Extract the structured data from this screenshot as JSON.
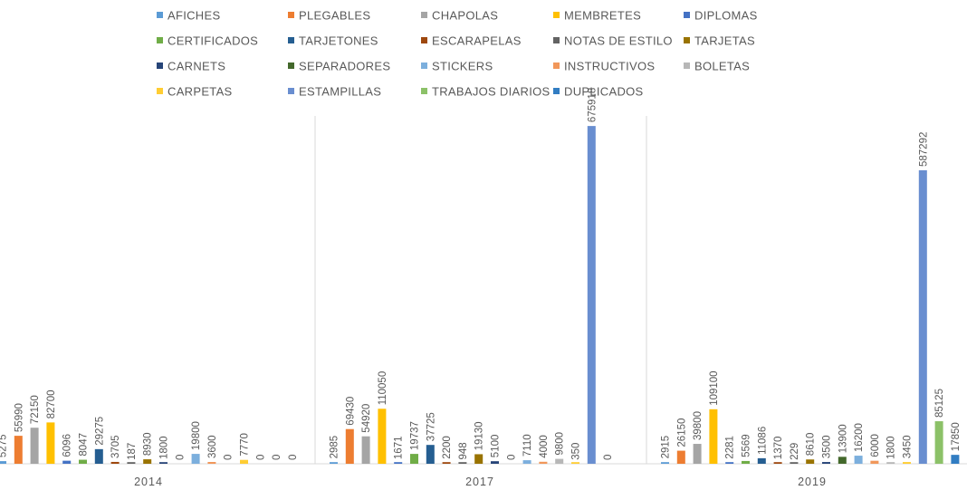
{
  "chart_data": {
    "type": "bar",
    "categories": [
      "2014",
      "2017",
      "2019"
    ],
    "ylim": [
      0,
      720000
    ],
    "grid": false,
    "legend_position": "top",
    "series": [
      {
        "name": "AFICHES",
        "color": "#5b9bd5",
        "values": [
          5275,
          2985,
          2915
        ]
      },
      {
        "name": "PLEGABLES",
        "color": "#ed7d31",
        "values": [
          55990,
          69430,
          26150
        ]
      },
      {
        "name": "CHAPOLAS",
        "color": "#a5a5a5",
        "values": [
          72150,
          54920,
          39800
        ]
      },
      {
        "name": "MEMBRETES",
        "color": "#ffc000",
        "values": [
          82700,
          110050,
          109100
        ]
      },
      {
        "name": "DIPLOMAS",
        "color": "#4472c4",
        "values": [
          6096,
          1671,
          2281
        ]
      },
      {
        "name": "CERTIFICADOS",
        "color": "#70ad47",
        "values": [
          8047,
          19737,
          5569
        ]
      },
      {
        "name": "TARJETONES",
        "color": "#255e91",
        "values": [
          29275,
          37725,
          11086
        ]
      },
      {
        "name": "ESCARAPELAS",
        "color": "#9e480e",
        "values": [
          3705,
          2200,
          1370
        ]
      },
      {
        "name": "NOTAS DE ESTILO",
        "color": "#636363",
        "values": [
          187,
          948,
          229
        ]
      },
      {
        "name": "TARJETAS",
        "color": "#997300",
        "values": [
          8930,
          19130,
          8610
        ]
      },
      {
        "name": "CARNETS",
        "color": "#264478",
        "values": [
          1800,
          5100,
          3500
        ]
      },
      {
        "name": "SEPARADORES",
        "color": "#43682b",
        "values": [
          0,
          0,
          13900
        ]
      },
      {
        "name": "STICKERS",
        "color": "#7cafdd",
        "values": [
          19800,
          7110,
          16200
        ]
      },
      {
        "name": "INSTRUCTIVOS",
        "color": "#f1975a",
        "values": [
          3600,
          4000,
          6000
        ]
      },
      {
        "name": "BOLETAS",
        "color": "#b7b7b7",
        "values": [
          0,
          9800,
          1800
        ]
      },
      {
        "name": "CARPETAS",
        "color": "#ffcd33",
        "values": [
          7770,
          350,
          3450
        ]
      },
      {
        "name": "ESTAMPILLAS",
        "color": "#698ed0",
        "values": [
          0,
          675918,
          587292
        ]
      },
      {
        "name": "TRABAJOS DIARIOS",
        "color": "#8cc168",
        "values": [
          0,
          0,
          85125
        ]
      },
      {
        "name": "DUPLICADOS",
        "color": "#327dc2",
        "values": [
          0,
          0,
          17850
        ]
      }
    ]
  }
}
